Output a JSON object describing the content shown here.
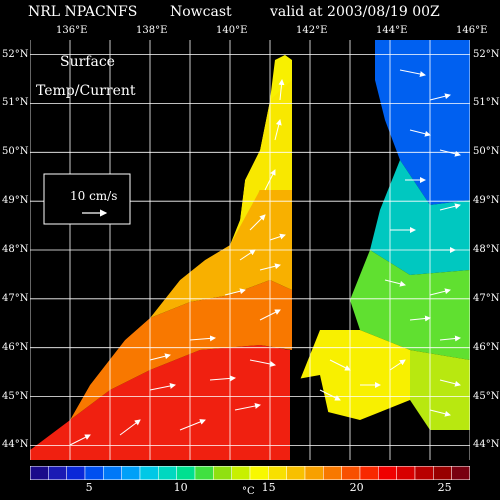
{
  "header": {
    "model": "NRL NPACNFS",
    "mode": "Nowcast",
    "valid": "valid at 2003/08/19 00Z"
  },
  "map": {
    "field_title_line1": "Surface",
    "field_title_line2": "Temp/Current",
    "scale_vector_label": "10 cm/s",
    "lon_labels": [
      "136°E",
      "138°E",
      "140°E",
      "142°E",
      "144°E",
      "146°E"
    ],
    "lat_labels": [
      "52°N",
      "51°N",
      "50°N",
      "49°N",
      "48°N",
      "47°N",
      "46°N",
      "45°N",
      "44°N"
    ],
    "land_color": "#000000",
    "grid_color": "#ffffff"
  },
  "colorbar": {
    "labels": [
      "5",
      "10",
      "15",
      "20",
      "25"
    ],
    "unit": "°C",
    "colors": [
      "#1a0a8a",
      "#1a1ab4",
      "#0a28d8",
      "#0050f0",
      "#0078f8",
      "#00a0f8",
      "#00c8e6",
      "#00d8c0",
      "#00e090",
      "#40e040",
      "#90e010",
      "#c8f000",
      "#f8f800",
      "#f8e000",
      "#f8c000",
      "#f8a000",
      "#f87800",
      "#f85000",
      "#f82800",
      "#f00000",
      "#d80000",
      "#b80000",
      "#980000",
      "#780010"
    ]
  }
}
